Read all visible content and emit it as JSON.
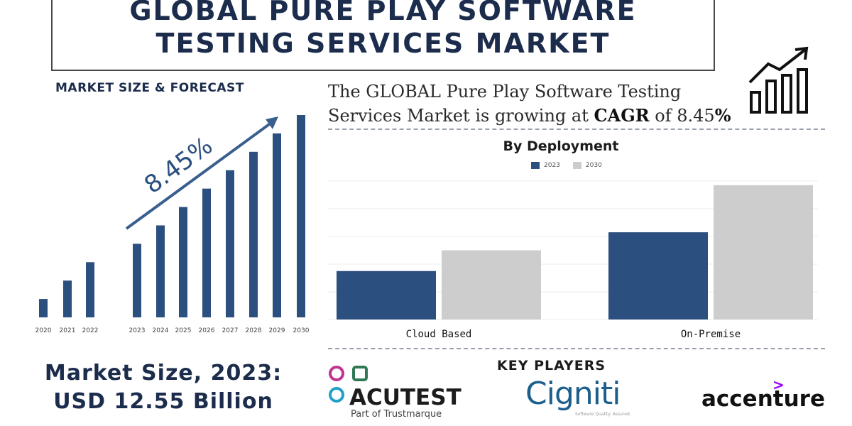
{
  "title": {
    "line1": "GLOBAL PURE PLAY SOFTWARE",
    "line2": "TESTING SERVICES MARKET"
  },
  "left_panel": {
    "header": "MARKET SIZE & FORECAST",
    "market_size_line1": "Market Size, 2023:",
    "market_size_line2": "USD 12.55 Billion"
  },
  "right_panel": {
    "cagr_text_1": "The GLOBAL Pure Play Software Testing",
    "cagr_text_2a": "Services Market is growing at ",
    "cagr_text_2b": "CAGR",
    "cagr_text_2c": " of 8.45",
    "cagr_text_2d": "%",
    "key_players_header": "KEY PLAYERS"
  },
  "key_players": {
    "acutest": {
      "name": "ACUTEST",
      "sub": "Part of Trustmarque"
    },
    "cigniti": {
      "name": "Cigniti",
      "tagline": "Software Quality. Assured."
    },
    "accenture": {
      "name": "accenture",
      "mark": ">"
    }
  },
  "colors": {
    "navy": "#2b4f7f",
    "gray": "#cdcdcd",
    "dark_text": "#1c2c4c"
  },
  "icons": {
    "growth": "bar-chart-growth-icon"
  },
  "chart_data": [
    {
      "type": "bar",
      "categories": [
        "2020",
        "2021",
        "2022",
        "2023",
        "2024",
        "2025",
        "2026",
        "2027",
        "2028",
        "2029",
        "2030"
      ],
      "values": [
        1,
        2,
        3,
        4,
        5,
        6,
        7,
        8,
        9,
        10,
        11
      ],
      "annotation": "8.45%",
      "grid": false,
      "legend": "none",
      "title": "",
      "xlabel": "",
      "ylabel": ""
    },
    {
      "type": "bar",
      "title": "By Deployment",
      "categories": [
        "Cloud Based",
        "On-Premise"
      ],
      "series": [
        {
          "name": "2023",
          "values": [
            35,
            63
          ]
        },
        {
          "name": "2030",
          "values": [
            50,
            97
          ]
        }
      ],
      "ylim": [
        0,
        100
      ],
      "grid": true,
      "legend": "top-center",
      "xlabel": "",
      "ylabel": ""
    }
  ]
}
